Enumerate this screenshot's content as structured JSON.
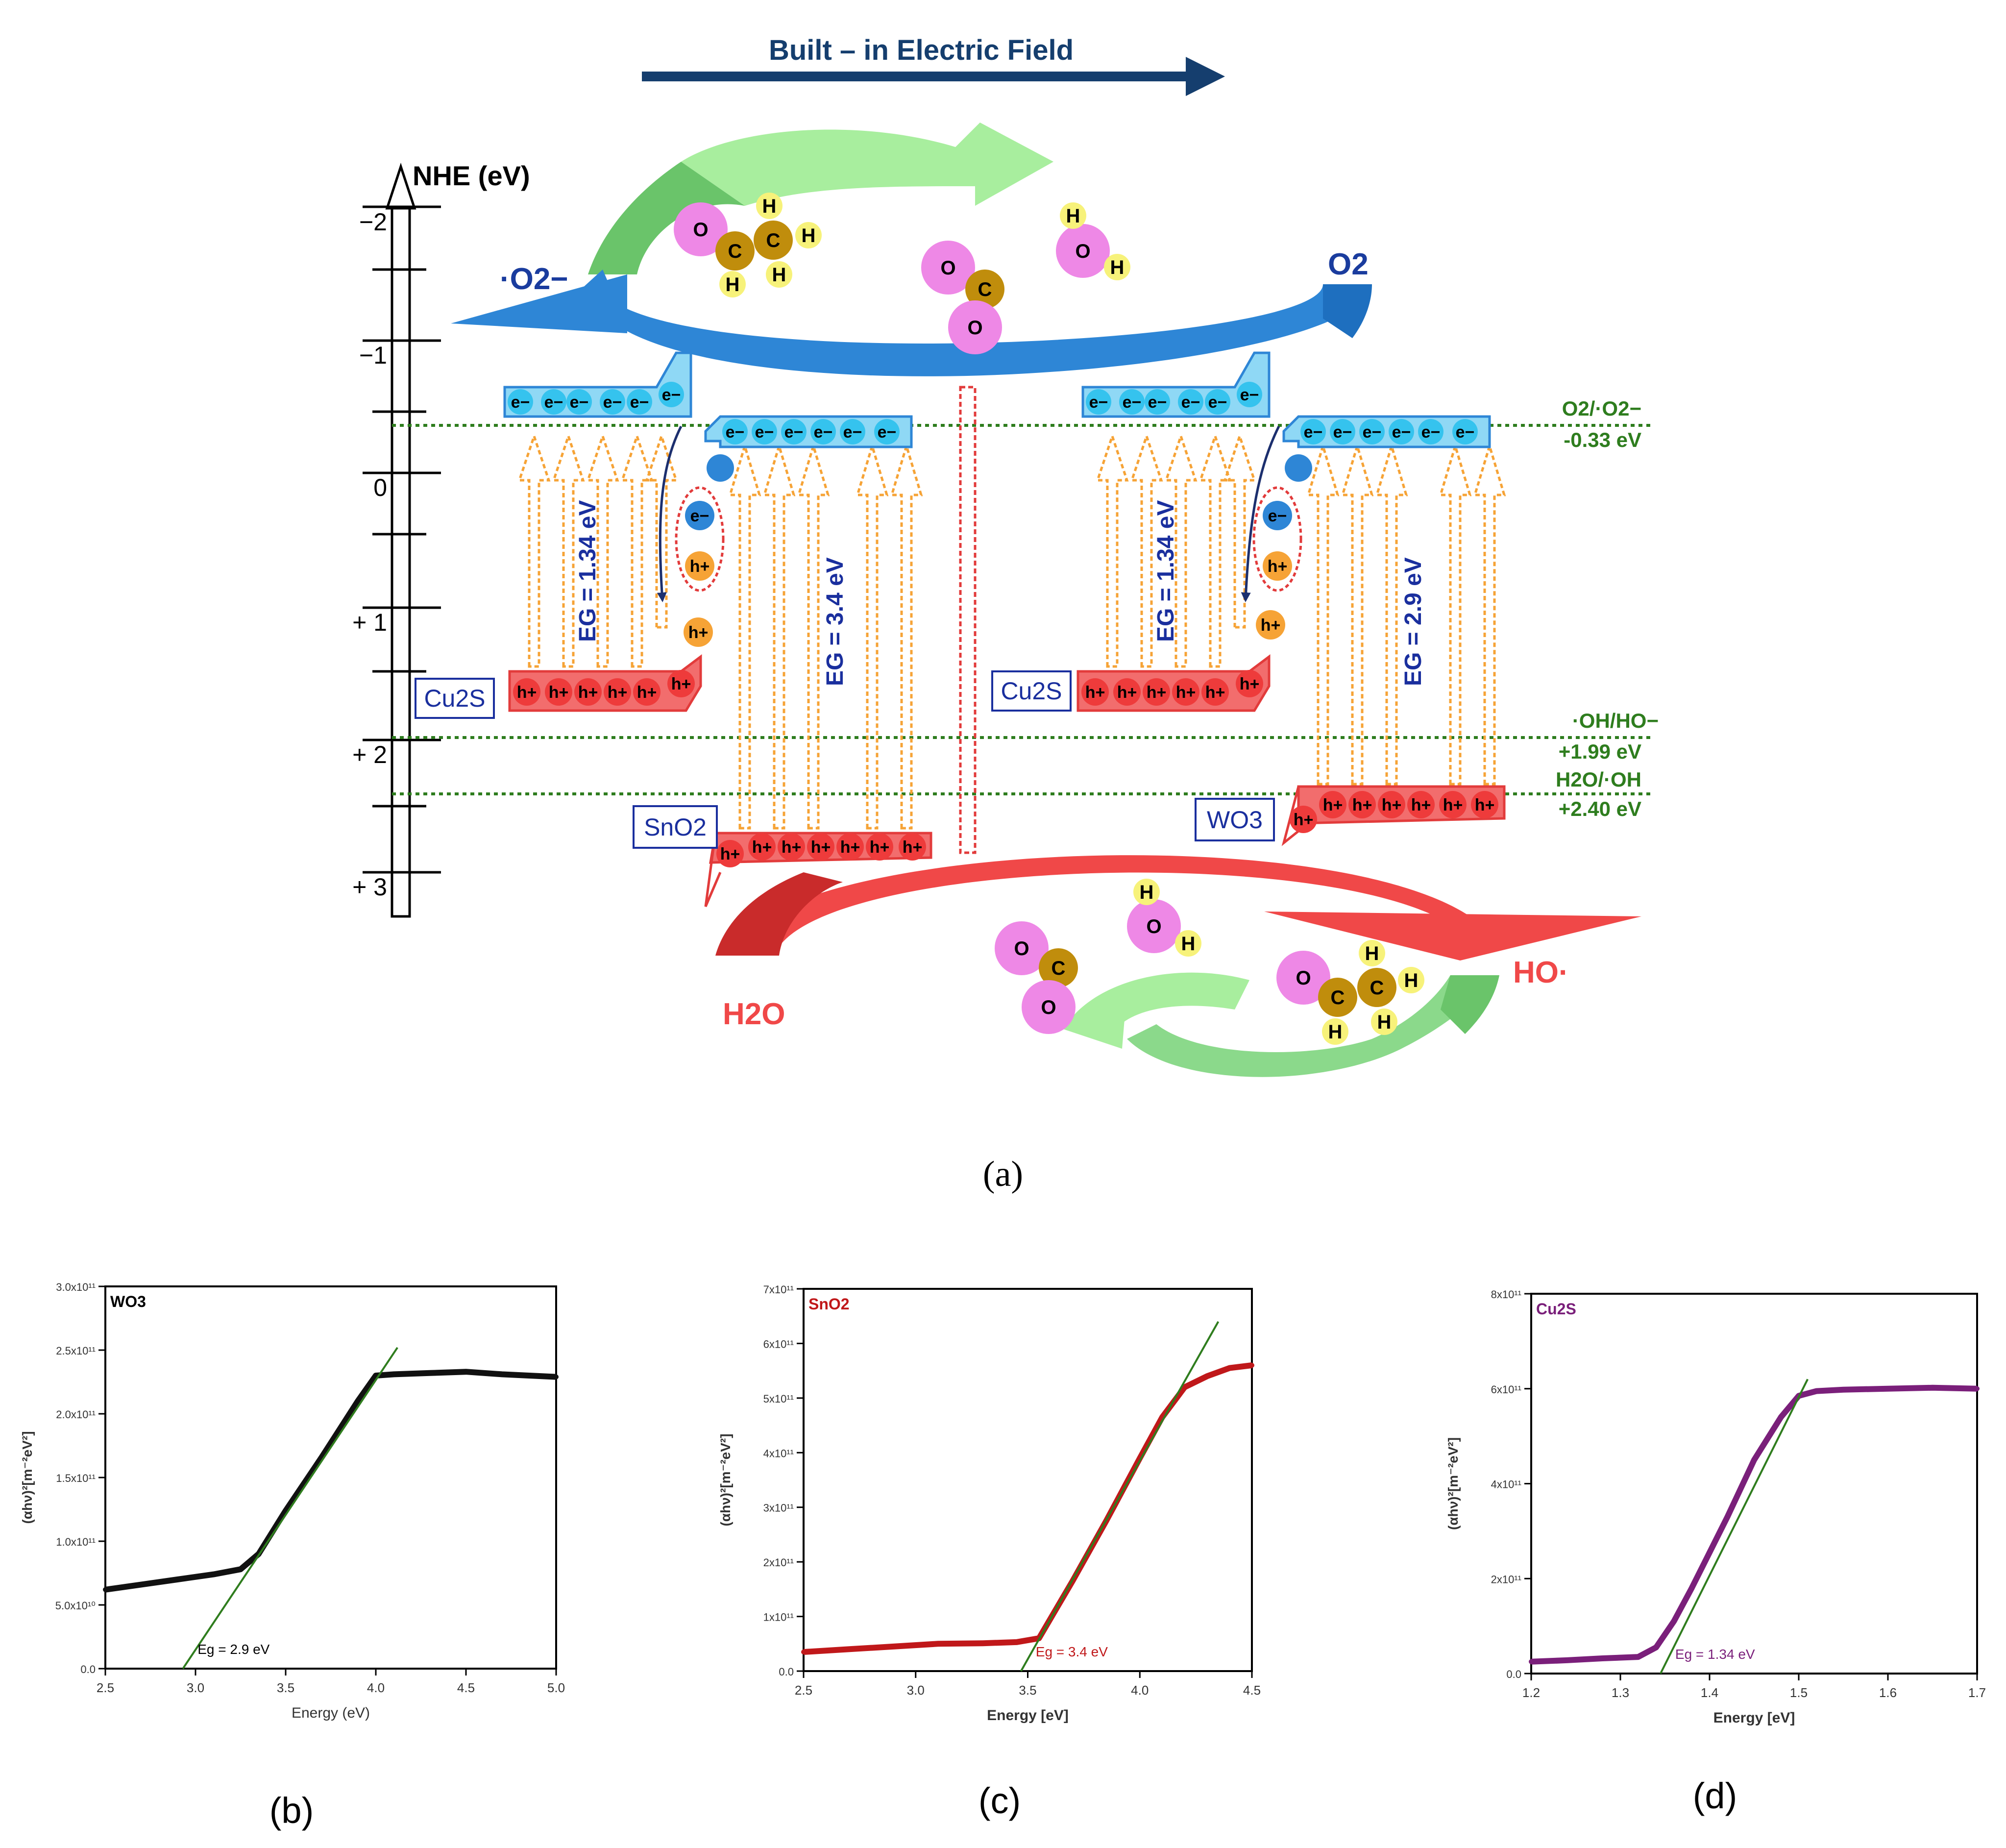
{
  "panel_a": {
    "field_label": "Built – in Electric Field",
    "axis_title": "NHE (eV)",
    "axis_ticks": [
      "−2",
      "−1",
      "0",
      "+ 1",
      "+ 2",
      "+ 3"
    ],
    "potentials": {
      "o2_label": "O2/·O2−",
      "o2_value": "-0.33 eV",
      "oh_label": "·OH/HO−",
      "oh_value": "+1.99 eV",
      "h2o_label": "H2O/·OH",
      "h2o_value": "+2.40 eV"
    },
    "species": {
      "superoxide": "·O2−",
      "oxygen": "O2",
      "water": "H2O",
      "hydroxyl": "HO·"
    },
    "materials": {
      "cu2s_left": "Cu2S",
      "sno2": "SnO2",
      "cu2s_right": "Cu2S",
      "wo3": "WO3"
    },
    "band_gaps": {
      "cu2s_left": "EG = 1.34 eV",
      "sno2": "EG = 3.4 eV",
      "cu2s_right": "EG = 1.34 eV",
      "wo3": "EG = 2.9 eV"
    },
    "carriers": {
      "electron": "e−",
      "hole": "h+"
    },
    "atoms": {
      "oxygen": "O",
      "carbon": "C",
      "hydrogen": "H"
    },
    "caption": "(a)"
  },
  "colors": {
    "electron": "#35c3ee",
    "hole": "#ee3b3b",
    "cb_band": "#8fd8f5",
    "vb_band": "#f26d6d",
    "arrow_navy": "#153e6e",
    "potential_green": "#2e7d1e",
    "orange_arrow": "#f6a336",
    "cu2s_curve": "#7a1f7a",
    "sno2_curve": "#c0181a",
    "wo3_curve": "#111111",
    "fit_line": "#2f7d1e"
  },
  "chart_data": [
    {
      "type": "line",
      "panel": "(b)",
      "legend": "WO3",
      "title": "",
      "xlabel": "Energy (eV)",
      "ylabel": "(αhν)²[m⁻²eV²]",
      "xlim": [
        2.5,
        5.0
      ],
      "ylim": [
        0.0,
        300000000000.0
      ],
      "x_ticks": [
        "2.5",
        "3.0",
        "3.5",
        "4.0",
        "4.5",
        "5.0"
      ],
      "y_ticks": [
        "0.0",
        "5.0x10¹⁰",
        "1.0x10¹¹",
        "1.5x10¹¹",
        "2.0x10¹¹",
        "2.5x10¹¹",
        "3.0x10¹¹"
      ],
      "x_tick_values": [
        2.5,
        3.0,
        3.5,
        4.0,
        4.5,
        5.0
      ],
      "y_tick_values": [
        0,
        50000000000.0,
        100000000000.0,
        150000000000.0,
        200000000000.0,
        250000000000.0,
        300000000000.0
      ],
      "series": [
        {
          "name": "WO3",
          "x": [
            2.5,
            2.7,
            2.9,
            3.1,
            3.25,
            3.35,
            3.5,
            3.7,
            3.9,
            4.0,
            4.1,
            4.3,
            4.5,
            4.7,
            5.0
          ],
          "y": [
            62000000000.0,
            66000000000.0,
            70000000000.0,
            74000000000.0,
            78000000000.0,
            90000000000.0,
            124000000000.0,
            166000000000.0,
            210000000000.0,
            230000000000.0,
            231000000000.0,
            232000000000.0,
            233000000000.0,
            231000000000.0,
            229000000000.0
          ]
        },
        {
          "name": "fit",
          "x": [
            2.93,
            4.12
          ],
          "y": [
            0,
            252000000000.0
          ]
        }
      ],
      "annotation": "Eg = 2.9 eV",
      "caption": "(b)"
    },
    {
      "type": "line",
      "panel": "(c)",
      "legend": "SnO2",
      "title": "",
      "xlabel": "Energy [eV]",
      "ylabel": "(αhν)²[m⁻²eV²]",
      "xlim": [
        2.5,
        4.5
      ],
      "ylim": [
        0.0,
        700000000000.0
      ],
      "x_ticks": [
        "2.5",
        "3.0",
        "3.5",
        "4.0",
        "4.5"
      ],
      "y_ticks": [
        "0.0",
        "1x10¹¹",
        "2x10¹¹",
        "3x10¹¹",
        "4x10¹¹",
        "5x10¹¹",
        "6x10¹¹",
        "7x10¹¹"
      ],
      "x_tick_values": [
        2.5,
        3.0,
        3.5,
        4.0,
        4.5
      ],
      "y_tick_values": [
        0,
        100000000000.0,
        200000000000.0,
        300000000000.0,
        400000000000.0,
        500000000000.0,
        600000000000.0,
        700000000000.0
      ],
      "series": [
        {
          "name": "SnO2",
          "x": [
            2.5,
            2.7,
            2.9,
            3.1,
            3.3,
            3.45,
            3.55,
            3.7,
            3.85,
            4.0,
            4.1,
            4.2,
            4.3,
            4.4,
            4.5
          ],
          "y": [
            35000000000.0,
            40000000000.0,
            45000000000.0,
            50000000000.0,
            51000000000.0,
            53000000000.0,
            60000000000.0,
            165000000000.0,
            275000000000.0,
            390000000000.0,
            465000000000.0,
            520000000000.0,
            540000000000.0,
            555000000000.0,
            560000000000.0
          ]
        },
        {
          "name": "fit",
          "x": [
            3.47,
            4.35
          ],
          "y": [
            0,
            640000000000.0
          ]
        }
      ],
      "annotation": "Eg = 3.4 eV",
      "caption": "(c)"
    },
    {
      "type": "line",
      "panel": "(d)",
      "legend": "Cu2S",
      "title": "",
      "xlabel": "Energy [eV]",
      "ylabel": "(αhν)²[m⁻²eV²]",
      "xlim": [
        1.2,
        1.7
      ],
      "ylim": [
        0.0,
        800000000000.0
      ],
      "x_ticks": [
        "1.2",
        "1.3",
        "1.4",
        "1.5",
        "1.6",
        "1.7"
      ],
      "y_ticks": [
        "0.0",
        "2x10¹¹",
        "4x10¹¹",
        "6x10¹¹",
        "8x10¹¹"
      ],
      "x_tick_values": [
        1.2,
        1.3,
        1.4,
        1.5,
        1.6,
        1.7
      ],
      "y_tick_values": [
        0,
        200000000000.0,
        400000000000.0,
        600000000000.0,
        800000000000.0
      ],
      "series": [
        {
          "name": "Cu2S",
          "x": [
            1.2,
            1.24,
            1.28,
            1.32,
            1.34,
            1.36,
            1.38,
            1.4,
            1.42,
            1.45,
            1.48,
            1.5,
            1.52,
            1.55,
            1.6,
            1.65,
            1.7
          ],
          "y": [
            25000000000.0,
            28000000000.0,
            32000000000.0,
            35000000000.0,
            55000000000.0,
            110000000000.0,
            180000000000.0,
            255000000000.0,
            330000000000.0,
            450000000000.0,
            540000000000.0,
            585000000000.0,
            595000000000.0,
            598000000000.0,
            600000000000.0,
            602000000000.0,
            600000000000.0
          ]
        },
        {
          "name": "fit",
          "x": [
            1.345,
            1.51
          ],
          "y": [
            0,
            620000000000.0
          ]
        }
      ],
      "annotation": "Eg = 1.34 eV",
      "caption": "(d)"
    }
  ]
}
